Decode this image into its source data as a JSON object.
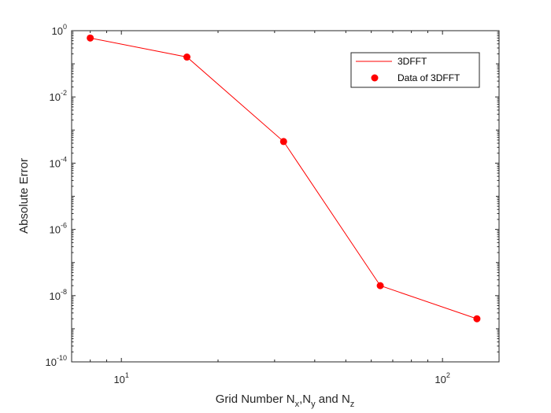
{
  "chart_data": {
    "type": "line",
    "xscale": "log",
    "yscale": "log",
    "xlim": [
      7,
      150
    ],
    "ylim": [
      1e-10,
      1
    ],
    "x_ticks": [
      {
        "base": "10",
        "exp": "1",
        "value": 10
      },
      {
        "base": "10",
        "exp": "2",
        "value": 100
      }
    ],
    "y_ticks": [
      {
        "base": "10",
        "exp": "0",
        "value": 1
      },
      {
        "base": "10",
        "exp": "-2",
        "value": 0.01
      },
      {
        "base": "10",
        "exp": "-4",
        "value": 0.0001
      },
      {
        "base": "10",
        "exp": "-6",
        "value": 1e-06
      },
      {
        "base": "10",
        "exp": "-8",
        "value": 1e-08
      },
      {
        "base": "10",
        "exp": "-10",
        "value": 1e-10
      }
    ],
    "xlabel": {
      "prefix": "Grid Number N",
      "sub1": "x",
      "sep1": ",N",
      "sub2": "y",
      "mid": " and N",
      "sub3": "z"
    },
    "ylabel": "Absolute Error",
    "grid": false,
    "legend_position": "top-right",
    "color": "#ff0000",
    "series": [
      {
        "name": "3DFFT",
        "style": "line",
        "x": [
          8,
          16,
          32,
          64,
          128
        ],
        "y": [
          0.6,
          0.16,
          0.00045,
          2e-08,
          2e-09
        ]
      },
      {
        "name": "Data of 3DFFT",
        "style": "markers",
        "x": [
          8,
          16,
          32,
          64,
          128
        ],
        "y": [
          0.6,
          0.16,
          0.00045,
          2e-08,
          2e-09
        ]
      }
    ]
  }
}
